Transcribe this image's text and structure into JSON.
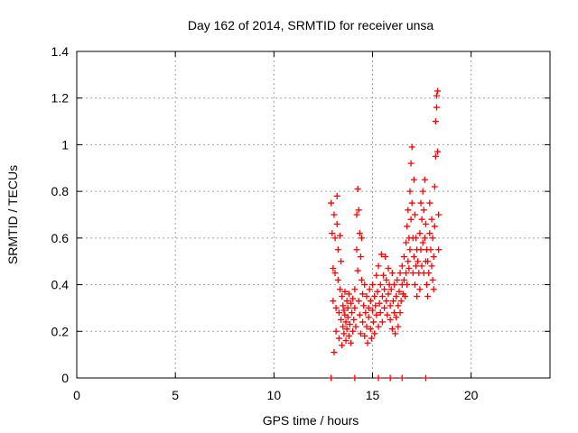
{
  "chart_data": {
    "type": "scatter",
    "title": "Day 162 of 2014, SRMTID for receiver unsa",
    "xlabel": "GPS time / hours",
    "ylabel": "SRMTID / TECUs",
    "xlim": [
      0,
      24
    ],
    "ylim": [
      0,
      1.4
    ],
    "xticks": [
      0,
      5,
      10,
      15,
      20
    ],
    "yticks": [
      0,
      0.2,
      0.4,
      0.6,
      0.8,
      1,
      1.2,
      1.4
    ],
    "xtick_labels": [
      "0",
      "5",
      "10",
      "15",
      "20"
    ],
    "ytick_labels": [
      "0",
      "0.2",
      "0.4",
      "0.6",
      "0.8",
      "1",
      "1.2",
      "1.4"
    ],
    "grid": true,
    "marker": "plus",
    "color": "#ff0000",
    "points": [
      [
        12.9,
        0.75
      ],
      [
        12.95,
        0.62
      ],
      [
        13.0,
        0.47
      ],
      [
        13.0,
        0.33
      ],
      [
        13.05,
        0.11
      ],
      [
        13.05,
        0.7
      ],
      [
        13.1,
        0.6
      ],
      [
        13.1,
        0.45
      ],
      [
        13.15,
        0.3
      ],
      [
        13.15,
        0.2
      ],
      [
        13.2,
        0.78
      ],
      [
        13.2,
        0.66
      ],
      [
        13.25,
        0.55
      ],
      [
        13.25,
        0.42
      ],
      [
        13.3,
        0.28
      ],
      [
        13.3,
        0.17
      ],
      [
        13.35,
        0.61
      ],
      [
        13.35,
        0.38
      ],
      [
        13.4,
        0.5
      ],
      [
        13.4,
        0.25
      ],
      [
        13.45,
        0.35
      ],
      [
        13.45,
        0.14
      ],
      [
        13.5,
        0.31
      ],
      [
        13.5,
        0.22
      ],
      [
        13.55,
        0.29
      ],
      [
        13.55,
        0.19
      ],
      [
        13.6,
        0.27
      ],
      [
        13.6,
        0.37
      ],
      [
        13.65,
        0.24
      ],
      [
        13.65,
        0.16
      ],
      [
        13.7,
        0.33
      ],
      [
        13.7,
        0.21
      ],
      [
        13.75,
        0.3
      ],
      [
        13.75,
        0.26
      ],
      [
        13.8,
        0.18
      ],
      [
        13.8,
        0.36
      ],
      [
        13.85,
        0.23
      ],
      [
        13.9,
        0.32
      ],
      [
        13.9,
        0.15
      ],
      [
        13.95,
        0.28
      ],
      [
        14.0,
        0.34
      ],
      [
        14.0,
        0.2
      ],
      [
        14.05,
        0.25
      ],
      [
        14.1,
        0.3
      ],
      [
        14.1,
        0.38
      ],
      [
        14.15,
        0.22
      ],
      [
        14.2,
        0.7
      ],
      [
        14.2,
        0.55
      ],
      [
        14.25,
        0.81
      ],
      [
        14.25,
        0.46
      ],
      [
        14.3,
        0.72
      ],
      [
        14.3,
        0.33
      ],
      [
        14.35,
        0.62
      ],
      [
        14.35,
        0.27
      ],
      [
        14.4,
        0.52
      ],
      [
        14.4,
        0.19
      ],
      [
        14.45,
        0.42
      ],
      [
        14.45,
        0.6
      ],
      [
        14.5,
        0.36
      ],
      [
        14.5,
        0.24
      ],
      [
        14.55,
        0.31
      ],
      [
        14.6,
        0.4
      ],
      [
        14.6,
        0.18
      ],
      [
        14.65,
        0.28
      ],
      [
        14.7,
        0.35
      ],
      [
        14.7,
        0.22
      ],
      [
        14.75,
        0.15
      ],
      [
        14.8,
        0.3
      ],
      [
        14.8,
        0.26
      ],
      [
        14.85,
        0.38
      ],
      [
        14.9,
        0.21
      ],
      [
        14.9,
        0.33
      ],
      [
        14.95,
        0.17
      ],
      [
        15.0,
        0.29
      ],
      [
        15.0,
        0.4
      ],
      [
        15.05,
        0.24
      ],
      [
        15.1,
        0.35
      ],
      [
        15.1,
        0.19
      ],
      [
        15.15,
        0.31
      ],
      [
        15.2,
        0.27
      ],
      [
        15.2,
        0.44
      ],
      [
        15.25,
        0.37
      ],
      [
        15.3,
        0.22
      ],
      [
        15.3,
        0.48
      ],
      [
        15.35,
        0.32
      ],
      [
        15.4,
        0.4
      ],
      [
        15.4,
        0.28
      ],
      [
        15.45,
        0.53
      ],
      [
        15.5,
        0.35
      ],
      [
        15.5,
        0.24
      ],
      [
        15.55,
        0.44
      ],
      [
        15.6,
        0.3
      ],
      [
        15.6,
        0.38
      ],
      [
        15.65,
        0.52
      ],
      [
        15.7,
        0.42
      ],
      [
        15.7,
        0.33
      ],
      [
        15.75,
        0.27
      ],
      [
        15.8,
        0.47
      ],
      [
        15.8,
        0.36
      ],
      [
        15.85,
        0.4
      ],
      [
        15.9,
        0.31
      ],
      [
        15.9,
        0.25
      ],
      [
        15.95,
        0.38
      ],
      [
        16.0,
        0.21
      ],
      [
        16.0,
        0.45
      ],
      [
        16.05,
        0.33
      ],
      [
        16.1,
        0.28
      ],
      [
        16.1,
        0.4
      ],
      [
        16.15,
        0.19
      ],
      [
        16.2,
        0.35
      ],
      [
        16.2,
        0.26
      ],
      [
        16.25,
        0.42
      ],
      [
        16.3,
        0.31
      ],
      [
        16.3,
        0.22
      ],
      [
        16.35,
        0.37
      ],
      [
        16.4,
        0.28
      ],
      [
        16.4,
        0.45
      ],
      [
        16.45,
        0.33
      ],
      [
        16.5,
        0.4
      ],
      [
        16.5,
        0.48
      ],
      [
        16.55,
        0.36
      ],
      [
        16.6,
        0.52
      ],
      [
        16.6,
        0.42
      ],
      [
        16.65,
        0.35
      ],
      [
        16.7,
        0.58
      ],
      [
        16.7,
        0.45
      ],
      [
        16.75,
        0.65
      ],
      [
        16.75,
        0.4
      ],
      [
        16.8,
        0.72
      ],
      [
        16.8,
        0.5
      ],
      [
        16.85,
        0.6
      ],
      [
        16.85,
        0.47
      ],
      [
        16.9,
        0.8
      ],
      [
        16.9,
        0.55
      ],
      [
        16.95,
        0.92
      ],
      [
        16.95,
        0.68
      ],
      [
        17.0,
        0.99
      ],
      [
        17.0,
        0.75
      ],
      [
        17.05,
        0.6
      ],
      [
        17.05,
        0.45
      ],
      [
        17.1,
        0.85
      ],
      [
        17.1,
        0.52
      ],
      [
        17.15,
        0.7
      ],
      [
        17.15,
        0.4
      ],
      [
        17.2,
        0.6
      ],
      [
        17.2,
        0.48
      ],
      [
        17.25,
        0.55
      ],
      [
        17.25,
        0.35
      ],
      [
        17.3,
        0.5
      ],
      [
        17.35,
        0.45
      ],
      [
        17.4,
        0.62
      ],
      [
        17.4,
        0.38
      ],
      [
        17.45,
        0.75
      ],
      [
        17.45,
        0.55
      ],
      [
        17.5,
        0.68
      ],
      [
        17.5,
        0.48
      ],
      [
        17.55,
        0.8
      ],
      [
        17.55,
        0.58
      ],
      [
        17.6,
        0.72
      ],
      [
        17.6,
        0.45
      ],
      [
        17.65,
        0.85
      ],
      [
        17.65,
        0.6
      ],
      [
        17.7,
        0.66
      ],
      [
        17.7,
        0.5
      ],
      [
        17.75,
        0.55
      ],
      [
        17.75,
        0.4
      ],
      [
        17.8,
        0.5
      ],
      [
        17.8,
        0.35
      ],
      [
        17.85,
        0.45
      ],
      [
        17.9,
        0.62
      ],
      [
        17.9,
        0.75
      ],
      [
        17.95,
        0.55
      ],
      [
        18.0,
        0.68
      ],
      [
        18.0,
        0.48
      ],
      [
        18.05,
        0.6
      ],
      [
        18.05,
        0.42
      ],
      [
        18.1,
        0.52
      ],
      [
        18.1,
        0.38
      ],
      [
        18.15,
        0.82
      ],
      [
        18.15,
        0.65
      ],
      [
        18.2,
        0.95
      ],
      [
        18.2,
        1.1
      ],
      [
        18.25,
        1.16
      ],
      [
        18.25,
        1.21
      ],
      [
        18.3,
        1.23
      ],
      [
        18.3,
        0.97
      ],
      [
        18.35,
        0.7
      ],
      [
        18.35,
        0.55
      ],
      [
        12.9,
        0.0
      ],
      [
        14.1,
        0.0
      ],
      [
        15.3,
        0.0
      ],
      [
        15.9,
        0.0
      ],
      [
        16.5,
        0.0
      ],
      [
        17.7,
        0.0
      ]
    ]
  }
}
